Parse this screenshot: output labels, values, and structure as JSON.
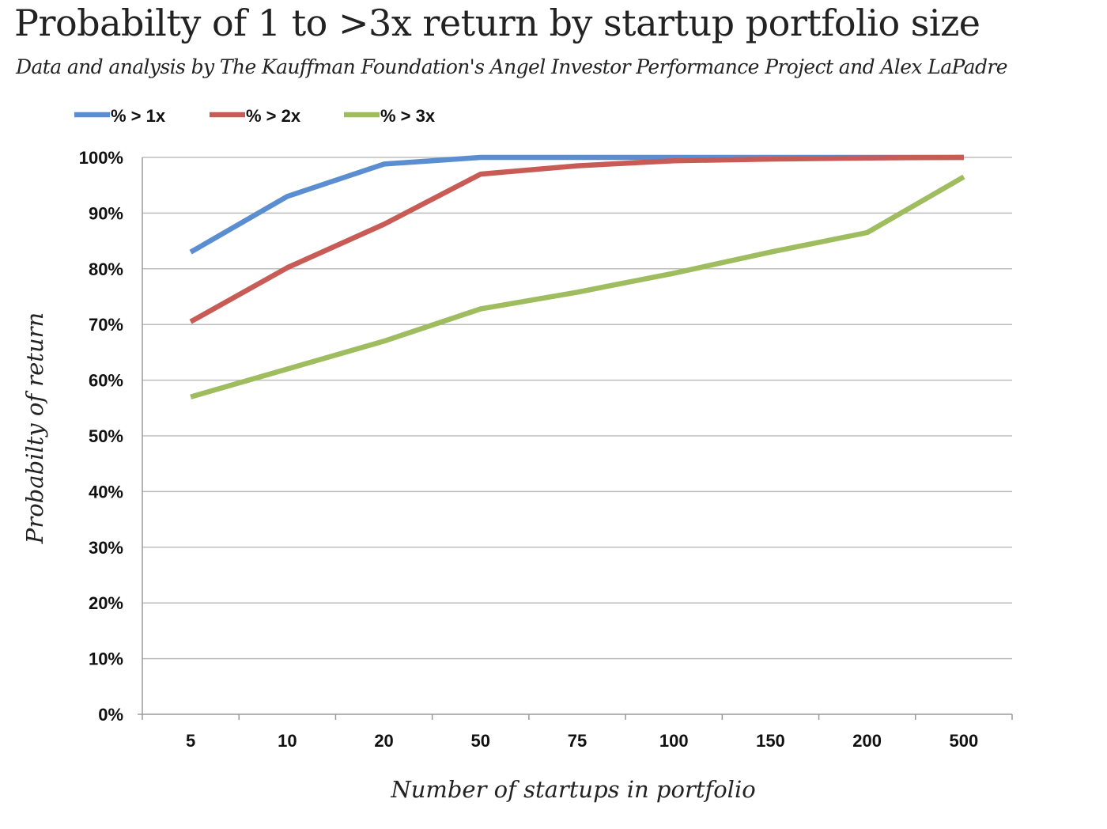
{
  "chart_data": {
    "type": "line",
    "title": "Probabilty of 1 to >3x return by startup portfolio size",
    "subtitle": "Data and analysis by The Kauffman Foundation's Angel Investor Performance Project and Alex LaPadre",
    "xlabel": "Number of startups in portfolio",
    "ylabel": "Probabilty of return",
    "categories": [
      "5",
      "10",
      "20",
      "50",
      "75",
      "100",
      "150",
      "200",
      "500"
    ],
    "ylim": [
      0,
      100
    ],
    "yticks": [
      "0%",
      "10%",
      "20%",
      "30%",
      "40%",
      "50%",
      "60%",
      "70%",
      "80%",
      "90%",
      "100%"
    ],
    "grid": true,
    "legend_position": "top-left",
    "series": [
      {
        "name": "% > 1x",
        "color": "#5b8ed1",
        "values": [
          83,
          93,
          98.8,
          100,
          100,
          100,
          100,
          100,
          100
        ]
      },
      {
        "name": "% > 2x",
        "color": "#c85b55",
        "values": [
          70.5,
          80.2,
          88,
          97,
          98.5,
          99.4,
          99.7,
          99.9,
          100
        ]
      },
      {
        "name": "% > 3x",
        "color": "#9fbd5f",
        "values": [
          57,
          62,
          67,
          72.8,
          75.8,
          79.2,
          83,
          86.5,
          96.5
        ]
      }
    ]
  }
}
